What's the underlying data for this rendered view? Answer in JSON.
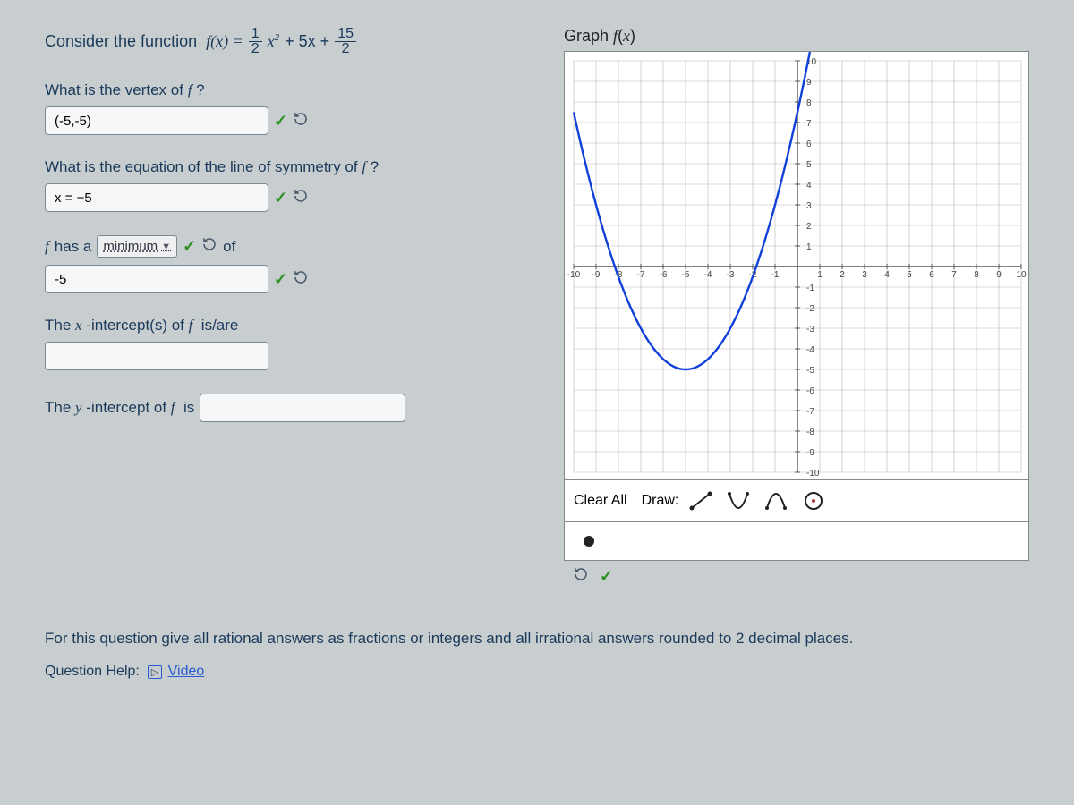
{
  "equation": {
    "prefix": "Consider the function",
    "func": "f(x) =",
    "frac1_num": "1",
    "frac1_den": "2",
    "term1_suffix": "x",
    "exp": "2",
    "plus1": "+ 5x +",
    "frac2_num": "15",
    "frac2_den": "2"
  },
  "q_vertex": {
    "label": "What is the vertex of  f ?",
    "value": "(-5,-5)"
  },
  "q_symmetry": {
    "label": "What is the equation of the line of symmetry of  f ?",
    "value": "x = −5"
  },
  "q_minmax": {
    "prefix": "f  has a",
    "select": "minimum",
    "of_label": "of",
    "value": "-5"
  },
  "q_xint": {
    "label": "The x -intercept(s) of  f  is/are",
    "value": ""
  },
  "q_yint": {
    "label": "The y -intercept of  f  is",
    "value": ""
  },
  "graph": {
    "title": "Graph f(x)",
    "xmin": -10,
    "xmax": 10,
    "ymin": -10,
    "ymax": 10,
    "axis_color": "#555555",
    "grid_color": "#b8b8b8",
    "curve_color": "#1040d8",
    "curve": {
      "a": 0.5,
      "b": 5,
      "c": 7.5,
      "vertex_x": -5,
      "vertex_y": -5
    },
    "xticks": [
      -10,
      -9,
      -8,
      -7,
      -6,
      -5,
      -4,
      -3,
      -2,
      -1,
      1,
      2,
      3,
      4,
      5,
      6,
      7,
      8,
      9,
      10
    ],
    "yticks": [
      -10,
      -9,
      -8,
      -7,
      -6,
      -5,
      -4,
      -3,
      -2,
      -1,
      1,
      2,
      3,
      4,
      5,
      6,
      7,
      8,
      9,
      10
    ],
    "tick_font_size": 10,
    "tick_color": "#444444"
  },
  "toolbar": {
    "clear_label": "Clear All",
    "draw_label": "Draw:"
  },
  "instructions": "For this question give all rational answers as fractions or integers and all irrational answers rounded to 2 decimal places.",
  "help": {
    "label": "Question Help:",
    "video": "Video"
  }
}
